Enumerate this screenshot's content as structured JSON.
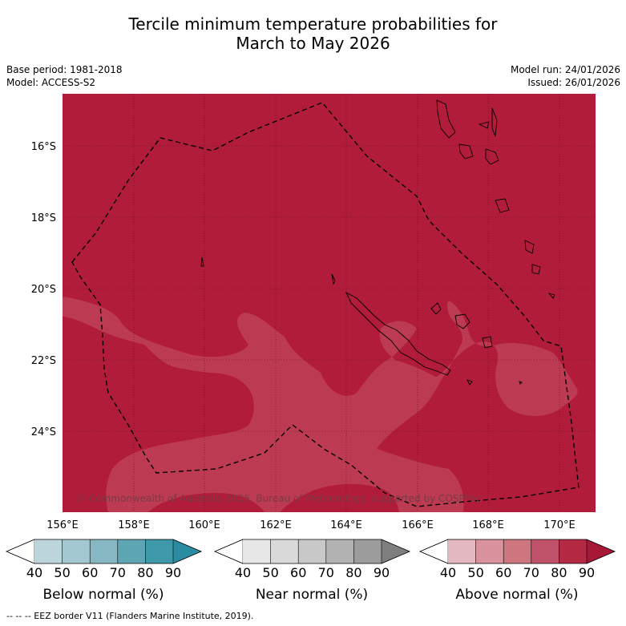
{
  "title_line1": "Tercile minimum temperature probabilities for",
  "title_line2": "March to May 2026",
  "base_period": "Base period: 1981-2018",
  "model": "Model: ACCESS-S2",
  "model_run": "Model run: 24/01/2026",
  "issued": "Issued: 26/01/2026",
  "copyright": "© Commonwealth of Australia 2026, Bureau of Meteorology, supported by COSPPac",
  "footer": "--  --  -- EEZ border V11 (Flanders Marine Institute, 2019).",
  "lat_labels": [
    "16°S",
    "18°S",
    "20°S",
    "22°S",
    "24°S"
  ],
  "lon_labels": [
    "156°E",
    "158°E",
    "160°E",
    "162°E",
    "164°E",
    "166°E",
    "168°E",
    "170°E"
  ],
  "colorbars": [
    {
      "title": "Below normal (%)",
      "ticks": [
        "40",
        "50",
        "60",
        "70",
        "80",
        "90"
      ],
      "colors": [
        "#ffffff",
        "#bdd6dc",
        "#a3c8cf",
        "#85b8c2",
        "#5ea5b3",
        "#3e9aab",
        "#2a8ca1"
      ]
    },
    {
      "title": "Near normal (%)",
      "ticks": [
        "40",
        "50",
        "60",
        "70",
        "80",
        "90"
      ],
      "colors": [
        "#ffffff",
        "#e7e7e7",
        "#d9d9d9",
        "#c8c8c8",
        "#b2b2b2",
        "#9c9c9c",
        "#7e7e7e"
      ]
    },
    {
      "title": "Above normal (%)",
      "ticks": [
        "40",
        "50",
        "60",
        "70",
        "80",
        "90"
      ],
      "colors": [
        "#ffffff",
        "#e4b8c0",
        "#d9929d",
        "#cd7680",
        "#c0526a",
        "#b42a45",
        "#a61836"
      ]
    }
  ],
  "map_colors": {
    "main": "#b11c3a",
    "lighter": "#bc3a52"
  }
}
